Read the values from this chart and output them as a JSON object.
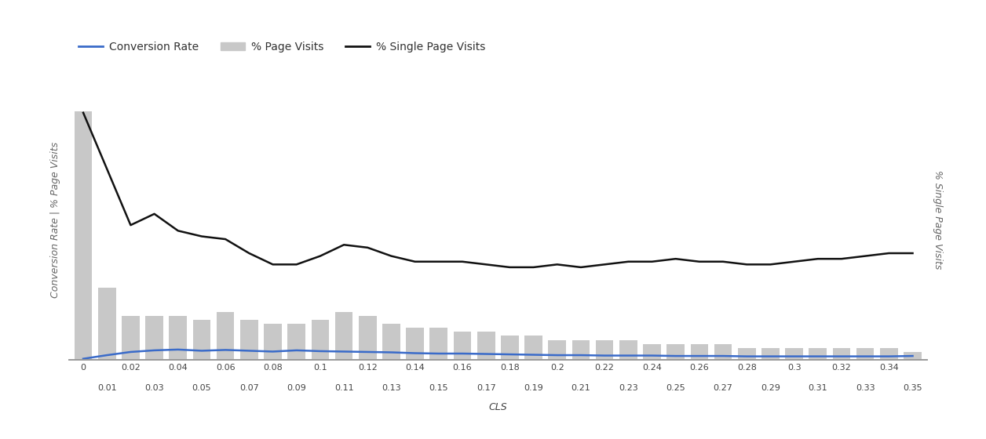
{
  "cls_ticks": [
    0,
    0.01,
    0.02,
    0.03,
    0.04,
    0.05,
    0.06,
    0.07,
    0.08,
    0.09,
    0.1,
    0.11,
    0.12,
    0.13,
    0.14,
    0.15,
    0.16,
    0.17,
    0.18,
    0.19,
    0.2,
    0.21,
    0.22,
    0.23,
    0.24,
    0.25,
    0.26,
    0.27,
    0.28,
    0.29,
    0.3,
    0.31,
    0.32,
    0.33,
    0.34,
    0.35
  ],
  "bar_values": [
    62,
    18,
    11,
    11,
    11,
    10,
    12,
    10,
    9,
    9,
    10,
    12,
    11,
    9,
    8,
    8,
    7,
    7,
    6,
    6,
    5,
    5,
    5,
    5,
    4,
    4,
    4,
    4,
    3,
    3,
    3,
    3,
    3,
    3,
    3,
    2
  ],
  "conversion_rate": [
    0.3,
    1.2,
    2.0,
    2.4,
    2.6,
    2.3,
    2.5,
    2.3,
    2.1,
    2.4,
    2.2,
    2.1,
    2.0,
    1.9,
    1.7,
    1.6,
    1.6,
    1.5,
    1.4,
    1.3,
    1.2,
    1.2,
    1.1,
    1.1,
    1.1,
    1.0,
    1.0,
    1.0,
    0.9,
    0.9,
    0.9,
    0.9,
    0.9,
    0.9,
    0.9,
    1.0
  ],
  "single_page_visits": [
    88,
    68,
    48,
    52,
    46,
    44,
    43,
    38,
    34,
    34,
    37,
    41,
    40,
    37,
    35,
    35,
    35,
    34,
    33,
    33,
    34,
    33,
    34,
    35,
    35,
    36,
    35,
    35,
    34,
    34,
    35,
    36,
    36,
    37,
    38,
    38
  ],
  "bar_color": "#c8c8c8",
  "conversion_color": "#3a6bc9",
  "single_page_color": "#111111",
  "xlabel": "CLS",
  "ylabel_left": "Conversion Rate | % Page Visits",
  "ylabel_right": "% Single Page Visits",
  "legend_labels": [
    "Conversion Rate",
    "% Page Visits",
    "% Single Page Visits"
  ],
  "background_color": "#ffffff",
  "ylim_left": [
    0,
    70
  ],
  "ylim_right": [
    0,
    100
  ],
  "axis_fontsize": 9,
  "legend_fontsize": 10,
  "xticks_even": [
    0,
    0.02,
    0.04,
    0.06,
    0.08,
    0.1,
    0.12,
    0.14,
    0.16,
    0.18,
    0.2,
    0.22,
    0.24,
    0.26,
    0.28,
    0.3,
    0.32,
    0.34
  ],
  "xticks_odd": [
    0.01,
    0.03,
    0.05,
    0.07,
    0.09,
    0.11,
    0.13,
    0.15,
    0.17,
    0.19,
    0.21,
    0.23,
    0.25,
    0.27,
    0.29,
    0.31,
    0.33,
    0.35
  ]
}
